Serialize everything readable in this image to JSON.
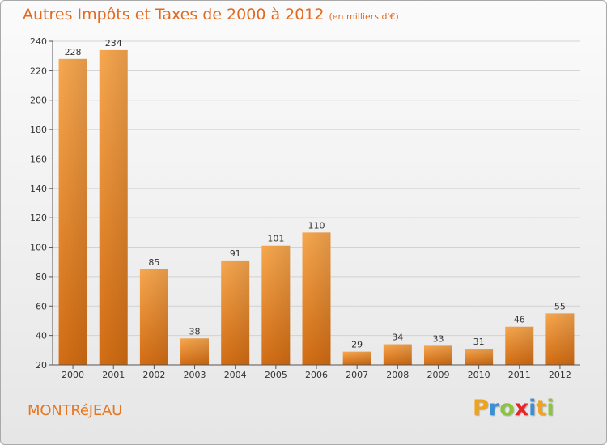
{
  "title": "Autres Impôts et Taxes de 2000 à 2012",
  "unit": "(en milliers d'€)",
  "place": "MONTRéJEAU",
  "logo": {
    "letters": [
      "P",
      "r",
      "o",
      "x",
      "i",
      "t",
      "i"
    ],
    "colors": [
      "#f0a21a",
      "#3a8fd6",
      "#8bc43f",
      "#e8262a",
      "#3a8fd6",
      "#f0a21a",
      "#8bc43f"
    ]
  },
  "colors": {
    "bar_top": "#f7a74f",
    "bar_bottom": "#d36d13",
    "title": "#e26a1f"
  },
  "chart_data": {
    "type": "bar",
    "title": "Autres Impôts et Taxes de 2000 à 2012",
    "ylabel": "",
    "xlabel": "",
    "categories": [
      "2000",
      "2001",
      "2002",
      "2003",
      "2004",
      "2005",
      "2006",
      "2007",
      "2008",
      "2009",
      "2010",
      "2011",
      "2012"
    ],
    "values": [
      228,
      234,
      85,
      38,
      91,
      101,
      110,
      29,
      34,
      33,
      31,
      46,
      55
    ],
    "ylim": [
      20,
      240
    ],
    "yticks": [
      20,
      40,
      60,
      80,
      100,
      120,
      140,
      160,
      180,
      200,
      220,
      240
    ],
    "grid": true
  }
}
